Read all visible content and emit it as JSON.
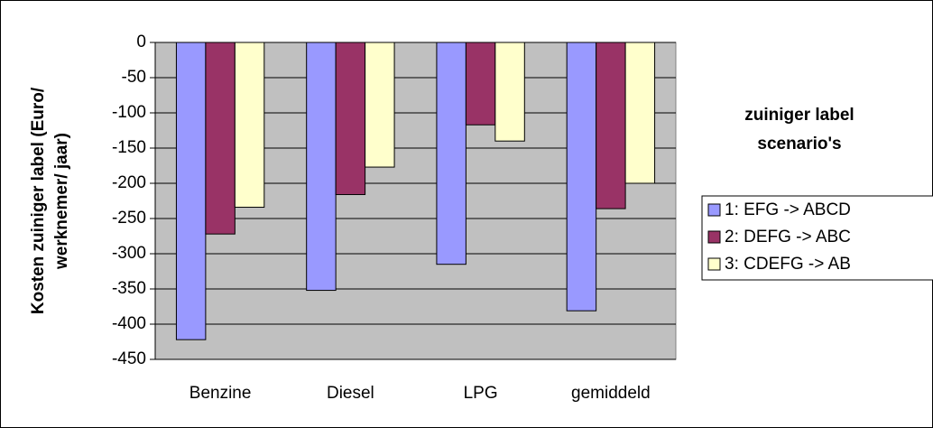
{
  "chart_data": {
    "type": "bar",
    "y_label": [
      "Kosten zuiniger label (Euro/",
      "werknemer/ jaar)"
    ],
    "legend_title": [
      "zuiniger label",
      "scenario's"
    ],
    "categories": [
      "Benzine",
      "Diesel",
      "LPG",
      "gemiddeld"
    ],
    "series": [
      {
        "name": "1: EFG -> ABCD",
        "color": "#9999ff",
        "values": [
          -422,
          -352,
          -315,
          -381
        ]
      },
      {
        "name": "2: DEFG -> ABC",
        "color": "#993366",
        "values": [
          -272,
          -216,
          -117,
          -236
        ]
      },
      {
        "name": "3: CDEFG -> AB",
        "color": "#ffffcc",
        "values": [
          -234,
          -177,
          -140,
          -200
        ]
      }
    ],
    "ylim": [
      -450,
      0
    ],
    "yticks": [
      0,
      -50,
      -100,
      -150,
      -200,
      -250,
      -300,
      -350,
      -400,
      -450
    ],
    "grid": true,
    "legend": "right"
  }
}
